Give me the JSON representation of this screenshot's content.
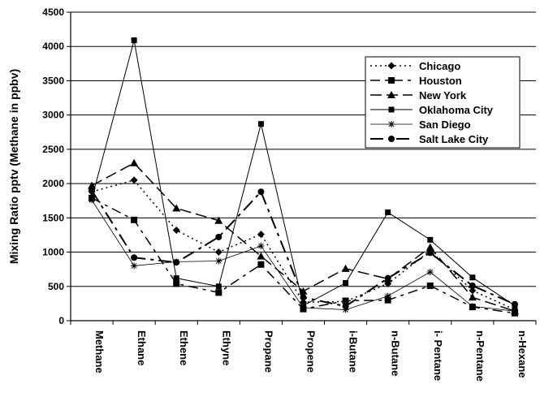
{
  "chart_data": {
    "type": "line",
    "title": "",
    "xlabel": "",
    "ylabel": "Mixing Ratio pptv (Methane in ppbv)",
    "ylim": [
      0,
      4500
    ],
    "yticks": [
      0,
      500,
      1000,
      1500,
      2000,
      2500,
      3000,
      3500,
      4000,
      4500
    ],
    "grid": "horizontal",
    "legend_position": "top-right",
    "categories": [
      "Methane",
      "Ethane",
      "Ethene",
      "Ethyne",
      "Propane",
      "Propene",
      "i-Butane",
      "n-Butane",
      "i- Pentane",
      "n-Pentane",
      "n-Hexane"
    ],
    "series": [
      {
        "name": "Chicago",
        "dash": "2,4",
        "width": 1.5,
        "marker": "diamond",
        "values": [
          1880,
          2050,
          1320,
          1000,
          1260,
          270,
          280,
          540,
          1020,
          440,
          160
        ]
      },
      {
        "name": "Houston",
        "dash": "12,6,4,6",
        "width": 1.5,
        "marker": "square",
        "values": [
          1790,
          1470,
          540,
          410,
          820,
          170,
          290,
          300,
          510,
          200,
          110
        ]
      },
      {
        "name": "New York",
        "dash": "14,6",
        "width": 1.5,
        "marker": "triangle",
        "values": [
          1970,
          2300,
          1640,
          1460,
          940,
          430,
          760,
          610,
          1070,
          340,
          140
        ]
      },
      {
        "name": "Oklahoma City",
        "dash": "",
        "width": 1,
        "marker": "square-small",
        "values": [
          1780,
          4090,
          620,
          500,
          2870,
          220,
          550,
          1580,
          1180,
          630,
          220
        ]
      },
      {
        "name": "San Diego",
        "dash": "",
        "width": 0.8,
        "marker": "star",
        "values": [
          1760,
          800,
          860,
          870,
          1090,
          190,
          160,
          360,
          710,
          210,
          140
        ]
      },
      {
        "name": "Salt Lake City",
        "dash": "16,6,4,6",
        "width": 2,
        "marker": "circle",
        "values": [
          1900,
          920,
          850,
          1220,
          1880,
          340,
          210,
          620,
          990,
          510,
          240
        ]
      }
    ]
  }
}
